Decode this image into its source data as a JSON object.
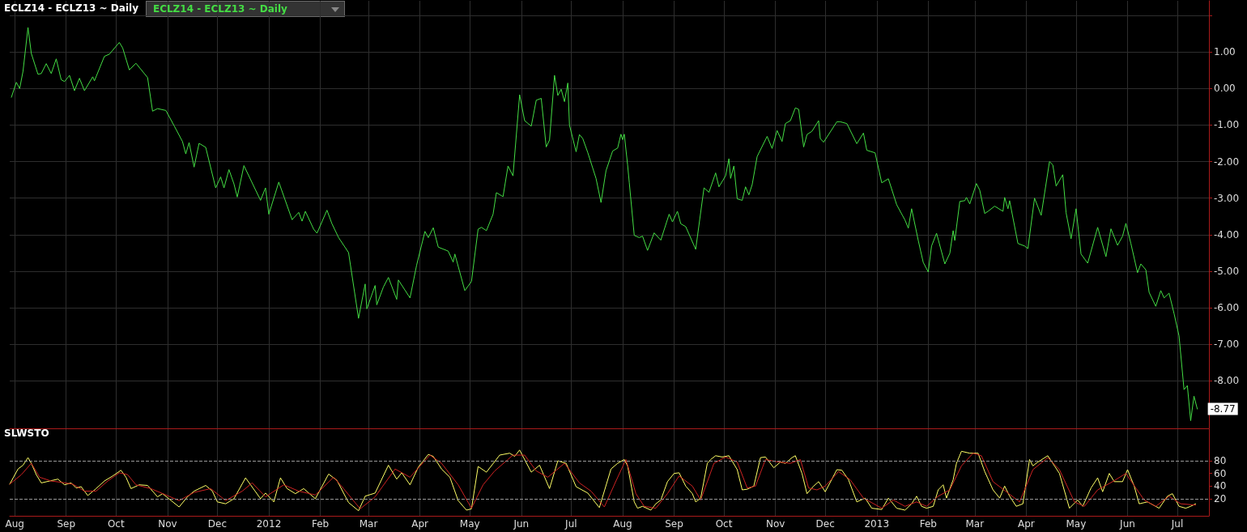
{
  "chart_data": [
    {
      "type": "line",
      "title": "ECLZ14 - ECLZ13 ~ Daily",
      "legend": "top left",
      "grid": true,
      "tick_labels": "y",
      "xlim": [
        "2011-07-29",
        "2013-07-20"
      ],
      "xticks": [
        {
          "value": "2011-08-01",
          "label": null
        },
        {
          "value": "2011-09-01",
          "label": null
        },
        {
          "value": "2011-10-01",
          "label": null
        },
        {
          "value": "2011-11-01",
          "label": null
        },
        {
          "value": "2011-12-01",
          "label": null
        },
        {
          "value": "2012-01-01",
          "label": null
        },
        {
          "value": "2012-02-01",
          "label": null
        },
        {
          "value": "2012-03-01",
          "label": null
        },
        {
          "value": "2012-04-01",
          "label": null
        },
        {
          "value": "2012-05-01",
          "label": null
        },
        {
          "value": "2012-06-01",
          "label": null
        },
        {
          "value": "2012-07-01",
          "label": null
        },
        {
          "value": "2012-08-01",
          "label": null
        },
        {
          "value": "2012-09-01",
          "label": null
        },
        {
          "value": "2012-10-01",
          "label": null
        },
        {
          "value": "2012-11-01",
          "label": null
        },
        {
          "value": "2012-12-01",
          "label": null
        },
        {
          "value": "2013-01-01",
          "label": null
        },
        {
          "value": "2013-02-01",
          "label": null
        },
        {
          "value": "2013-03-01",
          "label": null
        },
        {
          "value": "2013-04-01",
          "label": null
        },
        {
          "value": "2013-05-01",
          "label": null
        },
        {
          "value": "2013-06-01",
          "label": null
        },
        {
          "value": "2013-07-01",
          "label": null
        }
      ],
      "ylim": [
        -9.3,
        2.4
      ],
      "yticks": [
        {
          "value": 2,
          "label": null
        },
        {
          "value": 1,
          "label": "1.00"
        },
        {
          "value": 0,
          "label": "0.00"
        },
        {
          "value": -1,
          "label": "-1.00"
        },
        {
          "value": -2,
          "label": "-2.00"
        },
        {
          "value": -3,
          "label": "-3.00"
        },
        {
          "value": -4,
          "label": "-4.00"
        },
        {
          "value": -5,
          "label": "-5.00"
        },
        {
          "value": -6,
          "label": "-6.00"
        },
        {
          "value": -7,
          "label": "-7.00"
        },
        {
          "value": -8,
          "label": "-8.00"
        }
      ],
      "annotations": [
        {
          "text": "-8.77",
          "x": "2013-07-13",
          "y": -8.77
        }
      ],
      "x": [
        "2011-07-30",
        "2011-08-02",
        "2011-08-04",
        "2011-08-06",
        "2011-08-09",
        "2011-08-11",
        "2011-08-15",
        "2011-08-17",
        "2011-08-20",
        "2011-08-23",
        "2011-08-26",
        "2011-08-29",
        "2011-08-31",
        "2011-09-03",
        "2011-09-06",
        "2011-09-09",
        "2011-09-12",
        "2011-09-17",
        "2011-09-18",
        "2011-09-24",
        "2011-09-27",
        "2011-10-03",
        "2011-10-05",
        "2011-10-09",
        "2011-10-13",
        "2011-10-20",
        "2011-10-23",
        "2011-10-26",
        "2011-10-31",
        "2011-11-05",
        "2011-11-10",
        "2011-11-12",
        "2011-11-14",
        "2011-11-17",
        "2011-11-20",
        "2011-11-24",
        "2011-11-30",
        "2011-12-03",
        "2011-12-05",
        "2011-12-08",
        "2011-12-11",
        "2011-12-13",
        "2011-12-17",
        "2011-12-27",
        "2011-12-30",
        "2012-01-01",
        "2012-01-07",
        "2012-01-15",
        "2012-01-19",
        "2012-01-21",
        "2012-01-23",
        "2012-01-28",
        "2012-01-30",
        "2012-02-05",
        "2012-02-08",
        "2012-02-12",
        "2012-02-18",
        "2012-02-24",
        "2012-02-28",
        "2012-02-29",
        "2012-03-05",
        "2012-03-06",
        "2012-03-10",
        "2012-03-13",
        "2012-03-18",
        "2012-03-19",
        "2012-03-26",
        "2012-03-30",
        "2012-04-04",
        "2012-04-06",
        "2012-04-09",
        "2012-04-12",
        "2012-04-18",
        "2012-04-21",
        "2012-04-22",
        "2012-04-28",
        "2012-05-02",
        "2012-05-06",
        "2012-05-08",
        "2012-05-11",
        "2012-05-15",
        "2012-05-17",
        "2012-05-21",
        "2012-05-24",
        "2012-05-27",
        "2012-05-31",
        "2012-06-03",
        "2012-06-07",
        "2012-06-10",
        "2012-06-13",
        "2012-06-16",
        "2012-06-18",
        "2012-06-21",
        "2012-06-23",
        "2012-06-25",
        "2012-06-27",
        "2012-06-29",
        "2012-06-30",
        "2012-07-04",
        "2012-07-06",
        "2012-07-08",
        "2012-07-11",
        "2012-07-16",
        "2012-07-19",
        "2012-07-22",
        "2012-07-26",
        "2012-07-29",
        "2012-07-31",
        "2012-08-01",
        "2012-08-02",
        "2012-08-04",
        "2012-08-05",
        "2012-08-08",
        "2012-08-11",
        "2012-08-13",
        "2012-08-16",
        "2012-08-20",
        "2012-08-24",
        "2012-08-29",
        "2012-08-31",
        "2012-09-03",
        "2012-09-05",
        "2012-09-08",
        "2012-09-14",
        "2012-09-19",
        "2012-09-22",
        "2012-09-26",
        "2012-09-28",
        "2012-10-02",
        "2012-10-04",
        "2012-10-05",
        "2012-10-07",
        "2012-10-09",
        "2012-10-12",
        "2012-10-14",
        "2012-10-16",
        "2012-10-18",
        "2012-10-21",
        "2012-10-27",
        "2012-10-30",
        "2012-11-02",
        "2012-11-05",
        "2012-11-07",
        "2012-11-10",
        "2012-11-13",
        "2012-11-15",
        "2012-11-18",
        "2012-11-20",
        "2012-11-23",
        "2012-11-27",
        "2012-11-28",
        "2012-11-30",
        "2012-12-08",
        "2012-12-10",
        "2012-12-14",
        "2012-12-20",
        "2012-12-24",
        "2012-12-26",
        "2012-12-31",
        "2013-01-04",
        "2013-01-08",
        "2013-01-13",
        "2013-01-18",
        "2013-01-20",
        "2013-01-22",
        "2013-01-26",
        "2013-01-29",
        "2013-02-01",
        "2013-02-03",
        "2013-02-06",
        "2013-02-11",
        "2013-02-14",
        "2013-02-16",
        "2013-02-17",
        "2013-02-20",
        "2013-02-23",
        "2013-02-24",
        "2013-02-26",
        "2013-03-02",
        "2013-03-04",
        "2013-03-07",
        "2013-03-09",
        "2013-03-13",
        "2013-03-18",
        "2013-03-19",
        "2013-03-21",
        "2013-03-22",
        "2013-03-27",
        "2013-03-31",
        "2013-04-02",
        "2013-04-06",
        "2013-04-10",
        "2013-04-15",
        "2013-04-17",
        "2013-04-19",
        "2013-04-23",
        "2013-04-25",
        "2013-04-28",
        "2013-05-01",
        "2013-05-04",
        "2013-05-08",
        "2013-05-14",
        "2013-05-19",
        "2013-05-22",
        "2013-05-26",
        "2013-05-29",
        "2013-05-31",
        "2013-06-03",
        "2013-06-07",
        "2013-06-09",
        "2013-06-12",
        "2013-06-14",
        "2013-06-18",
        "2013-06-21",
        "2013-06-23",
        "2013-06-26",
        "2013-06-29",
        "2013-07-02",
        "2013-07-05",
        "2013-07-07",
        "2013-07-09",
        "2013-07-11",
        "2013-07-13"
      ],
      "series": [
        {
          "name": "ECLZ14 - ECLZ13 ~ Daily",
          "color": "#44dd44",
          "values": [
            -0.24,
            0.17,
            0.0,
            0.47,
            1.67,
            0.96,
            0.39,
            0.41,
            0.68,
            0.41,
            0.81,
            0.24,
            0.19,
            0.36,
            -0.06,
            0.28,
            -0.06,
            0.32,
            0.21,
            0.88,
            0.94,
            1.26,
            1.11,
            0.51,
            0.69,
            0.3,
            -0.62,
            -0.55,
            -0.6,
            -1.02,
            -1.45,
            -1.79,
            -1.48,
            -2.15,
            -1.5,
            -1.61,
            -2.72,
            -2.42,
            -2.72,
            -2.22,
            -2.61,
            -2.97,
            -2.11,
            -3.06,
            -2.72,
            -3.44,
            -2.56,
            -3.59,
            -3.39,
            -3.63,
            -3.36,
            -3.85,
            -3.96,
            -3.33,
            -3.7,
            -4.08,
            -4.49,
            -6.29,
            -5.35,
            -6.03,
            -5.39,
            -5.92,
            -5.43,
            -5.17,
            -5.77,
            -5.24,
            -5.73,
            -4.83,
            -3.91,
            -4.08,
            -3.81,
            -4.34,
            -4.45,
            -4.75,
            -4.53,
            -5.53,
            -5.28,
            -3.85,
            -3.8,
            -3.89,
            -3.44,
            -2.85,
            -2.96,
            -2.12,
            -2.39,
            -0.17,
            -0.88,
            -1.03,
            -0.32,
            -0.27,
            -1.6,
            -1.41,
            0.36,
            -0.19,
            -0.02,
            -0.36,
            0.15,
            -1.0,
            -1.73,
            -1.26,
            -1.37,
            -1.75,
            -2.46,
            -3.12,
            -2.25,
            -1.71,
            -1.63,
            -1.25,
            -1.4,
            -1.25,
            -2.09,
            -2.57,
            -4.02,
            -4.08,
            -4.04,
            -4.43,
            -3.95,
            -4.15,
            -3.44,
            -3.65,
            -3.36,
            -3.7,
            -3.78,
            -4.4,
            -2.72,
            -2.84,
            -2.31,
            -2.69,
            -2.39,
            -1.92,
            -2.46,
            -2.12,
            -3.02,
            -3.06,
            -2.69,
            -2.91,
            -2.63,
            -1.86,
            -1.31,
            -1.64,
            -1.15,
            -1.45,
            -0.96,
            -0.88,
            -0.53,
            -0.57,
            -1.6,
            -1.26,
            -1.17,
            -0.88,
            -1.37,
            -1.47,
            -0.91,
            -0.91,
            -0.96,
            -1.51,
            -1.22,
            -1.69,
            -1.76,
            -2.58,
            -2.47,
            -3.18,
            -3.6,
            -3.82,
            -3.29,
            -4.16,
            -4.76,
            -5.02,
            -4.31,
            -3.96,
            -4.8,
            -4.51,
            -3.89,
            -4.16,
            -3.09,
            -3.07,
            -2.98,
            -3.16,
            -2.6,
            -2.78,
            -3.42,
            -3.36,
            -3.22,
            -3.36,
            -2.98,
            -3.29,
            -3.07,
            -4.24,
            -4.31,
            -4.38,
            -3.0,
            -3.47,
            -2.0,
            -2.09,
            -2.67,
            -2.36,
            -3.4,
            -4.11,
            -3.29,
            -4.53,
            -4.78,
            -3.8,
            -4.6,
            -3.84,
            -4.29,
            -4.04,
            -3.69,
            -4.24,
            -5.04,
            -4.8,
            -4.96,
            -5.58,
            -5.96,
            -5.53,
            -5.73,
            -5.6,
            -6.16,
            -6.77,
            -8.24,
            -8.13,
            -9.09,
            -8.42,
            -8.77
          ]
        }
      ]
    },
    {
      "type": "line",
      "title": "SLWSTO",
      "grid": "x",
      "xlim": [
        "2011-07-29",
        "2013-07-20"
      ],
      "xticks": [
        {
          "value": "2011-08-01",
          "label": "Aug"
        },
        {
          "value": "2011-09-01",
          "label": "Sep"
        },
        {
          "value": "2011-10-01",
          "label": "Oct"
        },
        {
          "value": "2011-11-01",
          "label": "Nov"
        },
        {
          "value": "2011-12-01",
          "label": "Dec"
        },
        {
          "value": "2012-01-01",
          "label": "2012"
        },
        {
          "value": "2012-02-01",
          "label": "Feb"
        },
        {
          "value": "2012-03-01",
          "label": "Mar"
        },
        {
          "value": "2012-04-01",
          "label": "Apr"
        },
        {
          "value": "2012-05-01",
          "label": "May"
        },
        {
          "value": "2012-06-01",
          "label": "Jun"
        },
        {
          "value": "2012-07-01",
          "label": "Jul"
        },
        {
          "value": "2012-08-01",
          "label": "Aug"
        },
        {
          "value": "2012-09-01",
          "label": "Sep"
        },
        {
          "value": "2012-10-01",
          "label": "Oct"
        },
        {
          "value": "2012-11-01",
          "label": "Nov"
        },
        {
          "value": "2012-12-01",
          "label": "Dec"
        },
        {
          "value": "2013-01-01",
          "label": "2013"
        },
        {
          "value": "2013-02-01",
          "label": "Feb"
        },
        {
          "value": "2013-03-01",
          "label": "Mar"
        },
        {
          "value": "2013-04-01",
          "label": "Apr"
        },
        {
          "value": "2013-05-01",
          "label": "May"
        },
        {
          "value": "2013-06-01",
          "label": "Jun"
        },
        {
          "value": "2013-07-01",
          "label": "Jul"
        }
      ],
      "ylim": [
        -7,
        130
      ],
      "yticks": [
        80,
        60,
        40,
        20
      ],
      "ref_lines": [
        {
          "axis": "y",
          "value": 80,
          "color": "#999999",
          "line_style": "dashed"
        },
        {
          "axis": "y",
          "value": 20,
          "color": "#999999",
          "line_style": "dashed"
        }
      ],
      "series": [
        {
          "color": "#ffff66",
          "x": [
            "2011-07-29",
            "2011-08-03",
            "2011-08-06",
            "2011-08-09",
            "2011-08-11",
            "2011-08-14",
            "2011-08-17",
            "2011-08-22",
            "2011-08-27",
            "2011-08-31",
            "2011-09-04",
            "2011-09-07",
            "2011-09-10",
            "2011-09-14",
            "2011-09-19",
            "2011-09-24",
            "2011-09-29",
            "2011-10-04",
            "2011-10-07",
            "2011-10-10",
            "2011-10-15",
            "2011-10-20",
            "2011-10-26",
            "2011-10-29",
            "2011-11-08",
            "2011-11-13",
            "2011-11-17",
            "2011-11-24",
            "2011-11-28",
            "2011-12-01",
            "2011-12-06",
            "2011-12-11",
            "2011-12-18",
            "2011-12-21",
            "2011-12-27",
            "2011-12-30",
            "2012-01-04",
            "2012-01-08",
            "2012-01-12",
            "2012-01-17",
            "2012-01-22",
            "2012-01-29",
            "2012-02-06",
            "2012-02-11",
            "2012-02-18",
            "2012-02-24",
            "2012-02-28",
            "2012-03-05",
            "2012-03-13",
            "2012-03-18",
            "2012-03-21",
            "2012-03-26",
            "2012-03-31",
            "2012-04-06",
            "2012-04-09",
            "2012-04-14",
            "2012-04-19",
            "2012-04-24",
            "2012-04-29",
            "2012-05-02",
            "2012-05-06",
            "2012-05-11",
            "2012-05-19",
            "2012-05-25",
            "2012-05-28",
            "2012-05-31",
            "2012-06-07",
            "2012-06-12",
            "2012-06-18",
            "2012-06-23",
            "2012-06-28",
            "2012-07-04",
            "2012-07-11",
            "2012-07-18",
            "2012-07-25",
            "2012-07-29",
            "2012-08-02",
            "2012-08-04",
            "2012-08-08",
            "2012-08-10",
            "2012-08-13",
            "2012-08-18",
            "2012-08-21",
            "2012-08-24",
            "2012-08-28",
            "2012-09-01",
            "2012-09-04",
            "2012-09-08",
            "2012-09-12",
            "2012-09-14",
            "2012-09-17",
            "2012-09-21",
            "2012-09-23",
            "2012-09-26",
            "2012-09-30",
            "2012-10-04",
            "2012-10-09",
            "2012-10-12",
            "2012-10-15",
            "2012-10-19",
            "2012-10-23",
            "2012-10-26",
            "2012-10-31",
            "2012-11-04",
            "2012-11-07",
            "2012-11-11",
            "2012-11-13",
            "2012-11-17",
            "2012-11-20",
            "2012-11-24",
            "2012-11-27",
            "2012-12-01",
            "2012-12-08",
            "2012-12-11",
            "2012-12-15",
            "2012-12-20",
            "2012-12-25",
            "2012-12-29",
            "2013-01-04",
            "2013-01-08",
            "2013-01-13",
            "2013-01-18",
            "2013-01-22",
            "2013-01-25",
            "2013-01-28",
            "2013-01-31",
            "2013-02-04",
            "2013-02-07",
            "2013-02-10",
            "2013-02-12",
            "2013-02-16",
            "2013-02-18",
            "2013-02-21",
            "2013-02-26",
            "2013-03-03",
            "2013-03-07",
            "2013-03-12",
            "2013-03-16",
            "2013-03-19",
            "2013-03-22",
            "2013-03-26",
            "2013-03-30",
            "2013-04-03",
            "2013-04-05",
            "2013-04-08",
            "2013-04-14",
            "2013-04-18",
            "2013-04-21",
            "2013-04-27",
            "2013-05-02",
            "2013-05-05",
            "2013-05-10",
            "2013-05-14",
            "2013-05-17",
            "2013-05-21",
            "2013-05-24",
            "2013-05-29",
            "2013-06-01",
            "2013-06-05",
            "2013-06-08",
            "2013-06-13",
            "2013-06-20",
            "2013-06-25",
            "2013-06-28",
            "2013-07-02",
            "2013-07-06",
            "2013-07-09",
            "2013-07-12"
          ],
          "values": [
            43,
            67,
            73,
            85,
            76,
            58,
            45,
            48,
            51,
            42,
            45,
            37,
            39,
            25,
            36,
            48,
            56,
            65,
            54,
            36,
            42,
            41,
            23,
            28,
            7,
            23,
            32,
            41,
            32,
            15,
            12,
            20,
            53,
            42,
            20,
            29,
            15,
            53,
            36,
            28,
            36,
            20,
            59,
            49,
            14,
            1,
            24,
            29,
            73,
            51,
            61,
            42,
            70,
            90,
            87,
            67,
            54,
            17,
            2,
            4,
            71,
            62,
            89,
            92,
            87,
            97,
            62,
            73,
            36,
            80,
            76,
            39,
            29,
            6,
            67,
            76,
            82,
            72,
            15,
            5,
            8,
            2,
            12,
            18,
            47,
            60,
            61,
            40,
            28,
            15,
            21,
            76,
            82,
            88,
            86,
            88,
            66,
            34,
            35,
            40,
            85,
            86,
            69,
            78,
            76,
            85,
            88,
            60,
            28,
            40,
            47,
            31,
            66,
            65,
            50,
            15,
            21,
            5,
            3,
            21,
            5,
            2,
            12,
            24,
            8,
            5,
            8,
            34,
            42,
            21,
            50,
            76,
            95,
            92,
            92,
            63,
            34,
            21,
            40,
            24,
            8,
            12,
            82,
            72,
            78,
            88,
            72,
            60,
            5,
            18,
            8,
            37,
            53,
            31,
            60,
            47,
            47,
            66,
            40,
            12,
            15,
            5,
            24,
            28,
            8,
            5,
            8,
            12
          ]
        },
        {
          "color": "#cc2222",
          "x": [
            "2011-07-29",
            "2011-08-05",
            "2011-08-11",
            "2011-08-16",
            "2011-08-23",
            "2011-08-29",
            "2011-09-05",
            "2011-09-12",
            "2011-09-19",
            "2011-09-26",
            "2011-10-03",
            "2011-10-08",
            "2011-10-13",
            "2011-10-22",
            "2011-10-31",
            "2011-11-08",
            "2011-11-17",
            "2011-11-27",
            "2011-12-06",
            "2011-12-16",
            "2011-12-22",
            "2011-12-30",
            "2012-01-10",
            "2012-01-19",
            "2012-01-29",
            "2012-02-09",
            "2012-02-15",
            "2012-02-25",
            "2012-03-05",
            "2012-03-17",
            "2012-03-26",
            "2012-04-07",
            "2012-04-14",
            "2012-04-24",
            "2012-05-02",
            "2012-05-09",
            "2012-05-16",
            "2012-05-27",
            "2012-06-03",
            "2012-06-10",
            "2012-06-17",
            "2012-06-27",
            "2012-07-06",
            "2012-07-13",
            "2012-07-21",
            "2012-07-28",
            "2012-08-03",
            "2012-08-09",
            "2012-08-14",
            "2012-08-21",
            "2012-08-28",
            "2012-09-04",
            "2012-09-12",
            "2012-09-17",
            "2012-09-25",
            "2012-10-02",
            "2012-10-09",
            "2012-10-15",
            "2012-10-20",
            "2012-10-26",
            "2012-11-03",
            "2012-11-10",
            "2012-11-16",
            "2012-11-21",
            "2012-11-26",
            "2012-12-01",
            "2012-12-09",
            "2012-12-16",
            "2012-12-24",
            "2013-01-04",
            "2013-01-11",
            "2013-01-18",
            "2013-01-25",
            "2013-01-31",
            "2013-02-07",
            "2013-02-14",
            "2013-02-21",
            "2013-02-28",
            "2013-03-05",
            "2013-03-12",
            "2013-03-20",
            "2013-03-28",
            "2013-04-05",
            "2013-04-14",
            "2013-04-21",
            "2013-04-30",
            "2013-05-06",
            "2013-05-14",
            "2013-05-23",
            "2013-05-31",
            "2013-06-06",
            "2013-06-11",
            "2013-06-18",
            "2013-06-26",
            "2013-07-03",
            "2013-07-12"
          ],
          "values": [
            43,
            58,
            76,
            54,
            48,
            46,
            43,
            32,
            32,
            48,
            61,
            58,
            42,
            36,
            26,
            17,
            30,
            36,
            17,
            32,
            45,
            23,
            42,
            32,
            26,
            54,
            36,
            4,
            23,
            67,
            54,
            89,
            76,
            42,
            5,
            42,
            64,
            89,
            89,
            64,
            54,
            76,
            45,
            32,
            7,
            48,
            82,
            28,
            8,
            5,
            28,
            56,
            40,
            18,
            76,
            86,
            78,
            37,
            40,
            82,
            78,
            76,
            82,
            37,
            34,
            40,
            63,
            50,
            21,
            5,
            18,
            8,
            15,
            8,
            24,
            34,
            72,
            92,
            88,
            47,
            31,
            15,
            66,
            85,
            66,
            15,
            8,
            34,
            47,
            60,
            37,
            18,
            8,
            24,
            12,
            10
          ]
        }
      ]
    }
  ]
}
